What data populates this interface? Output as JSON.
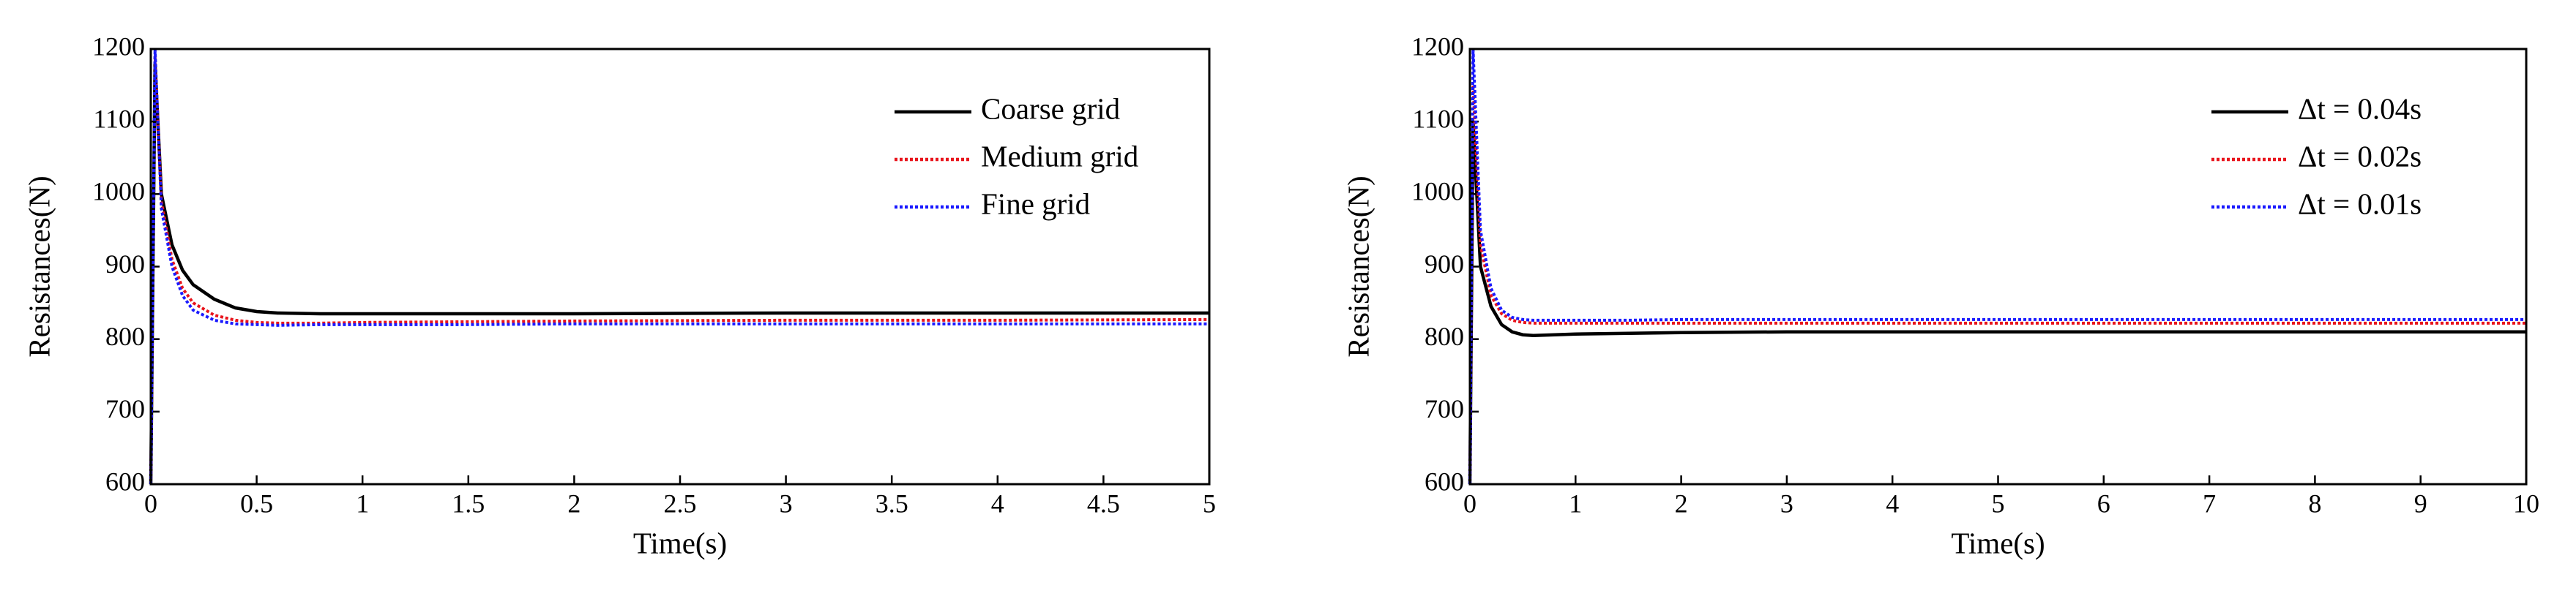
{
  "chart_data": [
    {
      "type": "line",
      "xlabel": "Time(s)",
      "ylabel": "Resistances(N)",
      "x": [
        0,
        0.02,
        0.05,
        0.1,
        0.15,
        0.2,
        0.3,
        0.4,
        0.5,
        0.6,
        0.8,
        1,
        1.5,
        2,
        3,
        4,
        5
      ],
      "xlim": [
        0,
        5
      ],
      "xticks": [
        0,
        0.5,
        1,
        1.5,
        2,
        2.5,
        3,
        3.5,
        4,
        4.5,
        5
      ],
      "ylim": [
        600,
        1200
      ],
      "yticks": [
        600,
        700,
        800,
        900,
        1000,
        1100,
        1200
      ],
      "legend": "upper right",
      "series": [
        {
          "name": "Coarse grid",
          "color": "#000000",
          "linestyle": "solid",
          "values": [
            600,
            1180,
            1000,
            930,
            895,
            875,
            855,
            843,
            838,
            836,
            835,
            835,
            835,
            835,
            836,
            836,
            836
          ]
        },
        {
          "name": "Medium grid",
          "color": "#e8141c",
          "linestyle": "dotted",
          "values": [
            600,
            1190,
            990,
            910,
            870,
            850,
            833,
            826,
            823,
            822,
            822,
            823,
            824,
            825,
            826,
            826,
            827
          ]
        },
        {
          "name": "Fine grid",
          "color": "#1a1aff",
          "linestyle": "dotted",
          "values": [
            600,
            1200,
            980,
            900,
            860,
            840,
            826,
            821,
            820,
            819,
            820,
            820,
            820,
            821,
            821,
            821,
            821
          ]
        }
      ]
    },
    {
      "type": "line",
      "xlabel": "Time(s)",
      "ylabel": "Resistances(N)",
      "x": [
        0,
        0.03,
        0.1,
        0.2,
        0.3,
        0.4,
        0.5,
        0.6,
        0.8,
        1,
        1.5,
        2,
        3,
        4,
        5,
        6,
        7,
        8,
        9,
        10
      ],
      "xlim": [
        0,
        10
      ],
      "xticks": [
        0,
        1,
        2,
        3,
        4,
        5,
        6,
        7,
        8,
        9,
        10
      ],
      "ylim": [
        600,
        1200
      ],
      "yticks": [
        600,
        700,
        800,
        900,
        1000,
        1100,
        1200
      ],
      "legend": "upper right",
      "series": [
        {
          "name": "Δt = 0.04s",
          "color": "#000000",
          "linestyle": "solid",
          "values": [
            600,
            1100,
            900,
            845,
            820,
            810,
            806,
            805,
            806,
            807,
            808,
            809,
            810,
            810,
            810,
            810,
            810,
            810,
            810,
            810
          ]
        },
        {
          "name": "Δt = 0.02s",
          "color": "#e8141c",
          "linestyle": "dotted",
          "values": [
            600,
            1150,
            930,
            860,
            835,
            826,
            823,
            822,
            822,
            822,
            822,
            822,
            822,
            822,
            822,
            822,
            822,
            822,
            822,
            822
          ]
        },
        {
          "name": "Δt = 0.01s",
          "color": "#1a1aff",
          "linestyle": "dotted",
          "values": [
            600,
            1200,
            950,
            870,
            840,
            830,
            827,
            826,
            826,
            826,
            826,
            827,
            827,
            827,
            827,
            827,
            827,
            827,
            827,
            827
          ]
        }
      ]
    }
  ]
}
